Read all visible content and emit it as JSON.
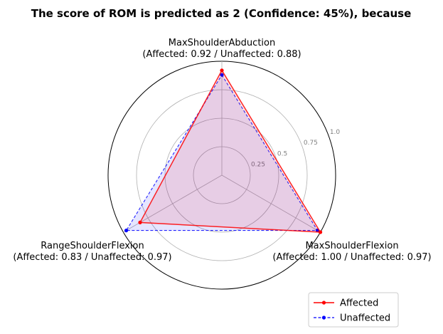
{
  "chart_data": {
    "type": "radar",
    "title": "The score of ROM is predicted as 2 (Confidence: 45%), because",
    "axes": [
      {
        "name": "MaxShoulderAbduction",
        "detail": "(Affected: 0.92 / Unaffected: 0.88)"
      },
      {
        "name": "MaxShoulderFlexion",
        "detail": "(Affected: 1.00 / Unaffected: 0.97)"
      },
      {
        "name": "RangeShoulderFlexion",
        "detail": "(Affected: 0.83 / Unaffected: 0.97)"
      }
    ],
    "rlim": [
      0,
      1.0
    ],
    "radial_ticks": [
      0.25,
      0.5,
      0.75,
      1.0
    ],
    "radial_tick_labels": [
      "0.25",
      "0.5",
      "0.75",
      "1.0"
    ],
    "series": [
      {
        "name": "Affected",
        "values": [
          0.92,
          1.0,
          0.83
        ],
        "color": "#ff0000",
        "line_style": "solid",
        "marker": "dot"
      },
      {
        "name": "Unaffected",
        "values": [
          0.88,
          0.97,
          0.97
        ],
        "color": "#0000ff",
        "line_style": "dashed",
        "marker": "dot"
      }
    ],
    "fill_colors": {
      "affected": "#ff0000",
      "unaffected": "#0000ff"
    },
    "grid": true,
    "legend_position": "bottom-right"
  }
}
